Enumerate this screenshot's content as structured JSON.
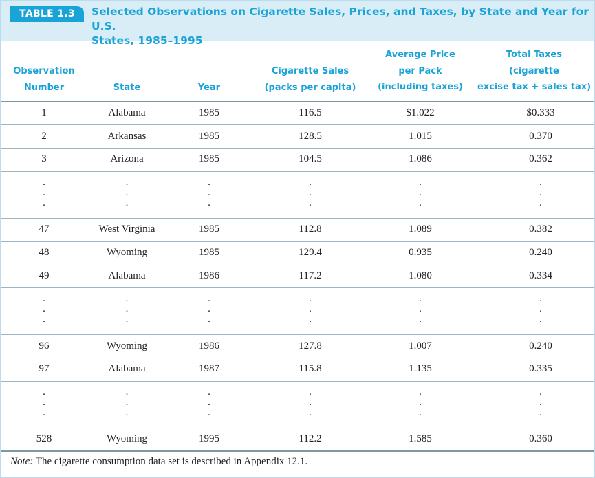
{
  "table": {
    "label": "TABLE 1.3",
    "title_line1": "Selected Observations on Cigarette Sales, Prices, and Taxes, by State and Year for U.S.",
    "title_line2": "States, 1985–1995"
  },
  "columns": {
    "observation": [
      "Observation",
      "Number"
    ],
    "state": "State",
    "year": "Year",
    "sales": [
      "Cigarette Sales",
      "(packs per capita)"
    ],
    "price": [
      "Average Price",
      "per Pack",
      "(including taxes)"
    ],
    "taxes": [
      "Total Taxes",
      "(cigarette",
      "excise tax + sales tax)"
    ]
  },
  "rows": [
    {
      "obs": "1",
      "state": "Alabama",
      "year": "1985",
      "sales": "116.5",
      "price": "$1.022",
      "tax": "$0.333"
    },
    {
      "obs": "2",
      "state": "Arkansas",
      "year": "1985",
      "sales": "128.5",
      "price": "1.015",
      "tax": "0.370"
    },
    {
      "obs": "3",
      "state": "Arizona",
      "year": "1985",
      "sales": "104.5",
      "price": "1.086",
      "tax": "0.362"
    },
    {
      "obs": "47",
      "state": "West Virginia",
      "year": "1985",
      "sales": "112.8",
      "price": "1.089",
      "tax": "0.382"
    },
    {
      "obs": "48",
      "state": "Wyoming",
      "year": "1985",
      "sales": "129.4",
      "price": "0.935",
      "tax": "0.240"
    },
    {
      "obs": "49",
      "state": "Alabama",
      "year": "1986",
      "sales": "117.2",
      "price": "1.080",
      "tax": "0.334"
    },
    {
      "obs": "96",
      "state": "Wyoming",
      "year": "1986",
      "sales": "127.8",
      "price": "1.007",
      "tax": "0.240"
    },
    {
      "obs": "97",
      "state": "Alabama",
      "year": "1987",
      "sales": "115.8",
      "price": "1.135",
      "tax": "0.335"
    },
    {
      "obs": "528",
      "state": "Wyoming",
      "year": "1995",
      "sales": "112.2",
      "price": "1.585",
      "tax": "0.360"
    }
  ],
  "ellipsis": ".\n.\n.",
  "note": {
    "label": "Note:",
    "text": " The cigarette consumption data set is described in Appendix 12.1."
  },
  "colors": {
    "accent": "#1aa3d6",
    "caption_background": "#d9edf7"
  }
}
